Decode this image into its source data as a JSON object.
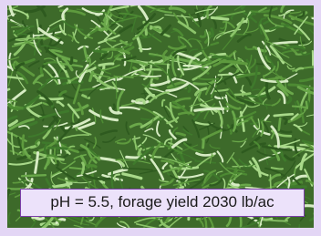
{
  "caption": "pH = 5.5, forage yield 2030 lb/ac"
}
